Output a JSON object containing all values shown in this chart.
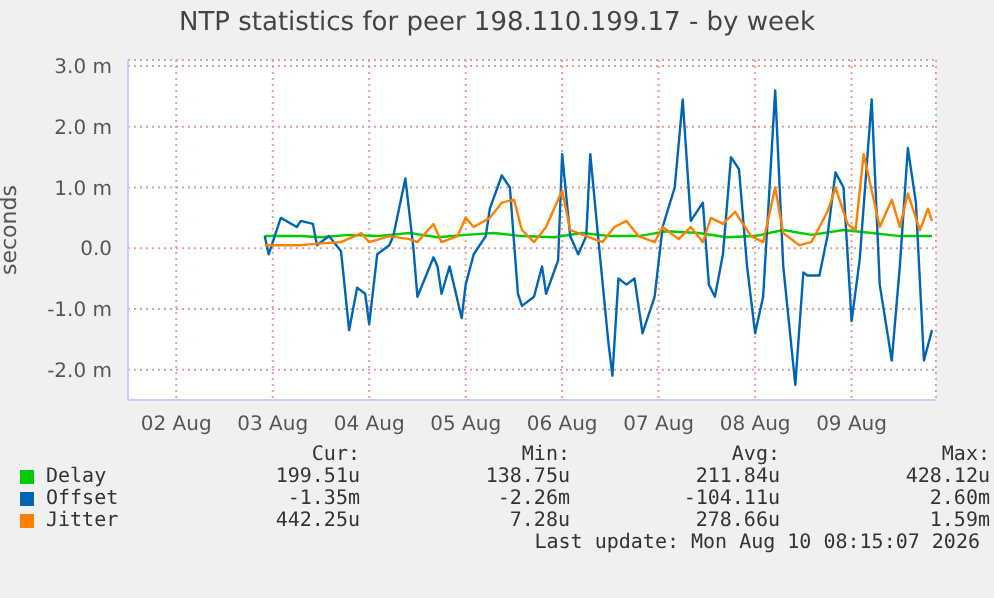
{
  "chart_data": {
    "type": "line",
    "title": "NTP statistics for peer 198.110.199.17 - by week",
    "ylabel": "seconds",
    "xlim": [
      "2026-08-02",
      "2026-08-10T09:00"
    ],
    "xticks": [
      {
        "value": "2026-08-02T12:00",
        "label": "02 Aug"
      },
      {
        "value": "2026-08-03T12:00",
        "label": "03 Aug"
      },
      {
        "value": "2026-08-04T12:00",
        "label": "04 Aug"
      },
      {
        "value": "2026-08-05T12:00",
        "label": "05 Aug"
      },
      {
        "value": "2026-08-06T12:00",
        "label": "06 Aug"
      },
      {
        "value": "2026-08-07T12:00",
        "label": "07 Aug"
      },
      {
        "value": "2026-08-08T12:00",
        "label": "08 Aug"
      },
      {
        "value": "2026-08-09T12:00",
        "label": "09 Aug"
      }
    ],
    "ylim": [
      -2.5,
      3.1
    ],
    "yticks": [
      {
        "value": -2,
        "label": "-2.0 m"
      },
      {
        "value": -1,
        "label": "-1.0 m"
      },
      {
        "value": 0,
        "label": "0.0"
      },
      {
        "value": 1,
        "label": "1.0 m"
      },
      {
        "value": 2,
        "label": "2.0 m"
      },
      {
        "value": 3,
        "label": "3.0 m"
      }
    ],
    "grid": true,
    "legend": "bottom",
    "marker": "none",
    "line_style": "solid",
    "series": [
      {
        "name": "Delay",
        "color": "#00cc00",
        "x": [
          "2026-08-03T10:00",
          "2026-08-03T14:00",
          "2026-08-03T19:00",
          "2026-08-04T00:00",
          "2026-08-04T07:00",
          "2026-08-04T14:00",
          "2026-08-04T22:00",
          "2026-08-05T05:00",
          "2026-08-05T12:00",
          "2026-08-05T19:00",
          "2026-08-06T02:00",
          "2026-08-06T10:00",
          "2026-08-06T17:00",
          "2026-08-07T00:00",
          "2026-08-07T07:00",
          "2026-08-07T14:00",
          "2026-08-07T22:00",
          "2026-08-08T05:00",
          "2026-08-08T12:00",
          "2026-08-08T19:00",
          "2026-08-09T02:00",
          "2026-08-09T10:00",
          "2026-08-09T17:00",
          "2026-08-10T00:00",
          "2026-08-10T08:00"
        ],
        "values": [
          0.2,
          0.2,
          0.2,
          0.18,
          0.22,
          0.2,
          0.25,
          0.18,
          0.22,
          0.25,
          0.2,
          0.18,
          0.25,
          0.2,
          0.2,
          0.28,
          0.25,
          0.18,
          0.2,
          0.3,
          0.22,
          0.3,
          0.25,
          0.2,
          0.2
        ]
      },
      {
        "name": "Offset",
        "color": "#0066b3",
        "x": [
          "2026-08-03T10:00",
          "2026-08-03T11:00",
          "2026-08-03T14:00",
          "2026-08-03T18:00",
          "2026-08-03T19:00",
          "2026-08-03T22:00",
          "2026-08-03T23:00",
          "2026-08-04T02:00",
          "2026-08-04T05:00",
          "2026-08-04T07:00",
          "2026-08-04T09:00",
          "2026-08-04T11:00",
          "2026-08-04T12:00",
          "2026-08-04T14:00",
          "2026-08-04T17:00",
          "2026-08-04T18:00",
          "2026-08-04T21:00",
          "2026-08-04T23:00",
          "2026-08-05T00:00",
          "2026-08-05T04:00",
          "2026-08-05T05:00",
          "2026-08-05T06:00",
          "2026-08-05T08:00",
          "2026-08-05T11:00",
          "2026-08-05T12:00",
          "2026-08-05T14:00",
          "2026-08-05T17:00",
          "2026-08-05T18:00",
          "2026-08-05T21:00",
          "2026-08-05T23:00",
          "2026-08-06T01:00",
          "2026-08-06T02:00",
          "2026-08-06T05:00",
          "2026-08-06T07:00",
          "2026-08-06T08:00",
          "2026-08-06T11:00",
          "2026-08-06T12:00",
          "2026-08-06T14:00",
          "2026-08-06T16:00",
          "2026-08-06T18:00",
          "2026-08-06T19:00",
          "2026-08-06T21:00",
          "2026-08-06T23:30",
          "2026-08-07T00:30",
          "2026-08-07T02:00",
          "2026-08-07T04:00",
          "2026-08-07T06:00",
          "2026-08-07T08:00",
          "2026-08-07T11:00",
          "2026-08-07T13:00",
          "2026-08-07T16:00",
          "2026-08-07T18:00",
          "2026-08-07T20:00",
          "2026-08-07T23:00",
          "2026-08-08T00:30",
          "2026-08-08T02:00",
          "2026-08-08T04:00",
          "2026-08-08T06:00",
          "2026-08-08T08:00",
          "2026-08-08T10:00",
          "2026-08-08T12:00",
          "2026-08-08T14:00",
          "2026-08-08T17:00",
          "2026-08-08T19:00",
          "2026-08-08T22:00",
          "2026-08-09T00:00",
          "2026-08-09T01:00",
          "2026-08-09T04:00",
          "2026-08-09T06:00",
          "2026-08-09T08:00",
          "2026-08-09T10:00",
          "2026-08-09T12:00",
          "2026-08-09T14:00",
          "2026-08-09T17:00",
          "2026-08-09T19:00",
          "2026-08-09T22:00",
          "2026-08-10T00:00",
          "2026-08-10T02:00",
          "2026-08-10T04:00",
          "2026-08-10T06:00",
          "2026-08-10T08:00"
        ],
        "values": [
          0.2,
          -0.1,
          0.5,
          0.35,
          0.45,
          0.4,
          0.05,
          0.2,
          -0.05,
          -1.35,
          -0.65,
          -0.75,
          -1.25,
          -0.1,
          0.05,
          0.2,
          1.15,
          0,
          -0.8,
          -0.15,
          -0.3,
          -0.75,
          -0.3,
          -1.15,
          -0.6,
          -0.1,
          0.2,
          0.65,
          1.2,
          1.0,
          -0.75,
          -0.95,
          -0.8,
          -0.3,
          -0.75,
          -0.2,
          1.55,
          0.2,
          -0.1,
          0.2,
          1.55,
          0.15,
          -1.55,
          -2.1,
          -0.5,
          -0.6,
          -0.5,
          -1.4,
          -0.8,
          0.35,
          1.0,
          2.45,
          0.45,
          0.75,
          -0.6,
          -0.8,
          -0.1,
          1.5,
          1.3,
          -0.3,
          -1.4,
          -0.8,
          2.6,
          -0.3,
          -2.25,
          -0.4,
          -0.45,
          -0.45,
          0.2,
          1.25,
          1.0,
          -1.2,
          -0.2,
          2.45,
          -0.6,
          -1.85,
          -0.3,
          1.65,
          0.75,
          -1.85,
          -1.35
        ]
      },
      {
        "name": "Jitter",
        "color": "#ff8000",
        "x": [
          "2026-08-03T10:00",
          "2026-08-03T14:00",
          "2026-08-03T19:00",
          "2026-08-04T00:00",
          "2026-08-04T05:00",
          "2026-08-04T10:00",
          "2026-08-04T12:00",
          "2026-08-04T17:00",
          "2026-08-04T22:00",
          "2026-08-05T00:00",
          "2026-08-05T04:00",
          "2026-08-05T06:00",
          "2026-08-05T10:00",
          "2026-08-05T12:00",
          "2026-08-05T14:00",
          "2026-08-05T18:00",
          "2026-08-05T21:00",
          "2026-08-06T00:00",
          "2026-08-06T02:00",
          "2026-08-06T05:00",
          "2026-08-06T08:00",
          "2026-08-06T12:00",
          "2026-08-06T14:00",
          "2026-08-06T18:00",
          "2026-08-06T22:00",
          "2026-08-07T01:00",
          "2026-08-07T04:00",
          "2026-08-07T07:00",
          "2026-08-07T11:00",
          "2026-08-07T13:00",
          "2026-08-07T17:00",
          "2026-08-07T20:00",
          "2026-08-07T23:00",
          "2026-08-08T01:00",
          "2026-08-08T04:00",
          "2026-08-08T07:00",
          "2026-08-08T11:00",
          "2026-08-08T14:00",
          "2026-08-08T17:00",
          "2026-08-08T19:00",
          "2026-08-08T23:00",
          "2026-08-09T02:00",
          "2026-08-09T06:00",
          "2026-08-09T08:00",
          "2026-08-09T11:00",
          "2026-08-09T13:00",
          "2026-08-09T15:00",
          "2026-08-09T19:00",
          "2026-08-09T22:00",
          "2026-08-10T00:00",
          "2026-08-10T02:00",
          "2026-08-10T05:00",
          "2026-08-10T07:00",
          "2026-08-10T08:00"
        ],
        "values": [
          0.05,
          0.05,
          0.05,
          0.08,
          0.1,
          0.25,
          0.1,
          0.2,
          0.15,
          0.1,
          0.4,
          0.1,
          0.2,
          0.5,
          0.35,
          0.5,
          0.75,
          0.8,
          0.3,
          0.1,
          0.35,
          0.95,
          0.3,
          0.2,
          0.1,
          0.35,
          0.45,
          0.2,
          0.1,
          0.35,
          0.15,
          0.35,
          0.1,
          0.5,
          0.4,
          0.6,
          0.2,
          0.1,
          1.0,
          0.25,
          0.05,
          0.1,
          0.6,
          1.0,
          0.4,
          0.3,
          1.55,
          0.35,
          0.8,
          0.35,
          0.9,
          0.3,
          0.65,
          0.45
        ]
      }
    ],
    "annotations": [
      "Cur:",
      "Min:",
      "Avg:",
      "Max:",
      "199.51u",
      "138.75u",
      "211.84u",
      "428.12u",
      "-1.35m",
      "-2.26m",
      "-104.11u",
      "2.60m",
      "442.25u",
      "7.28u",
      "278.66u",
      "1.59m",
      "Last update: Mon Aug 10 08:15:07 2026"
    ]
  }
}
